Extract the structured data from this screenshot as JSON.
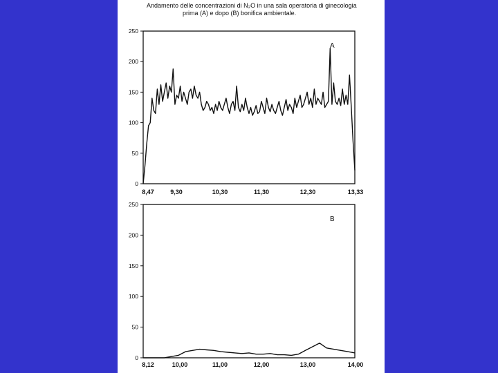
{
  "slide": {
    "background": "#3333cc"
  },
  "title": {
    "line1": "Andamento delle concentrazioni di N₂O in una sala operatoria di ginecologia",
    "line2": "prima (A) e dopo (B) bonifica ambientale."
  },
  "chart_data": [
    {
      "type": "line",
      "panel_label": "A",
      "title": "",
      "xlabel": "",
      "ylabel": "",
      "ylim": [
        0,
        250
      ],
      "yticks": [
        "250",
        "200",
        "150",
        "100",
        "50",
        "0"
      ],
      "xticks": [
        "8,47",
        "9,30",
        "10,30",
        "11,30",
        "12,30",
        "13,33"
      ],
      "grid": false,
      "series": [
        {
          "x": [
            0,
            1,
            2,
            3,
            4,
            5,
            6,
            7,
            8,
            9,
            10,
            11,
            12,
            13,
            14,
            15,
            16,
            17,
            18,
            19,
            20,
            21,
            22,
            23,
            24,
            25,
            26,
            27,
            28,
            29,
            30,
            31,
            32,
            33,
            34,
            35,
            36,
            37,
            38,
            39,
            40,
            41,
            42,
            43,
            44,
            45,
            46,
            47,
            48,
            49,
            50,
            51,
            52,
            53,
            54,
            55,
            56,
            57,
            58,
            59,
            60,
            61,
            62,
            63,
            64,
            65,
            66,
            67,
            68,
            69,
            70,
            71,
            72,
            73,
            74,
            75,
            76,
            77,
            78,
            79,
            80,
            81,
            82,
            83,
            84,
            85,
            86,
            87,
            88,
            89,
            90,
            91,
            92,
            93,
            94,
            95,
            96,
            97,
            98,
            99,
            100,
            101,
            102,
            103,
            104,
            105,
            106,
            107,
            108,
            109,
            110,
            111,
            112,
            113,
            114,
            115,
            116,
            117,
            118,
            119,
            120
          ],
          "y": [
            0,
            30,
            65,
            95,
            100,
            140,
            120,
            115,
            155,
            130,
            162,
            135,
            150,
            165,
            140,
            160,
            150,
            188,
            130,
            145,
            140,
            160,
            135,
            150,
            140,
            130,
            150,
            155,
            140,
            160,
            145,
            140,
            150,
            130,
            120,
            125,
            135,
            130,
            120,
            125,
            115,
            130,
            120,
            135,
            125,
            120,
            130,
            140,
            125,
            115,
            130,
            135,
            120,
            160,
            125,
            118,
            130,
            120,
            140,
            125,
            115,
            125,
            112,
            118,
            128,
            115,
            118,
            135,
            125,
            115,
            140,
            125,
            118,
            130,
            120,
            115,
            125,
            135,
            120,
            112,
            125,
            138,
            120,
            130,
            125,
            115,
            140,
            125,
            135,
            145,
            125,
            130,
            140,
            150,
            130,
            140,
            125,
            155,
            130,
            140,
            135,
            130,
            150,
            125,
            130,
            135,
            222,
            130,
            165,
            135,
            130,
            140,
            128,
            155,
            130,
            145,
            130,
            178,
            125,
            70,
            22
          ]
        }
      ]
    },
    {
      "type": "line",
      "panel_label": "B",
      "title": "",
      "xlabel": "",
      "ylabel": "",
      "ylim": [
        0,
        250
      ],
      "yticks": [
        "250",
        "200",
        "150",
        "100",
        "50",
        "0"
      ],
      "xticks": [
        "8,12",
        "10,00",
        "11,00",
        "12,00",
        "13,00",
        "14,00"
      ],
      "grid": false,
      "series": [
        {
          "x": [
            0,
            4,
            8,
            12,
            16,
            20,
            24,
            28,
            32,
            36,
            40,
            44,
            48,
            52,
            56,
            60,
            64,
            68,
            72,
            76,
            80,
            84,
            88,
            92,
            96,
            100,
            104,
            108,
            112,
            116,
            120
          ],
          "y": [
            0,
            0,
            0,
            0,
            2,
            4,
            10,
            12,
            14,
            13,
            12,
            10,
            9,
            8,
            7,
            8,
            6,
            6,
            7,
            5,
            5,
            4,
            6,
            12,
            18,
            24,
            16,
            14,
            12,
            10,
            8
          ]
        }
      ]
    }
  ]
}
